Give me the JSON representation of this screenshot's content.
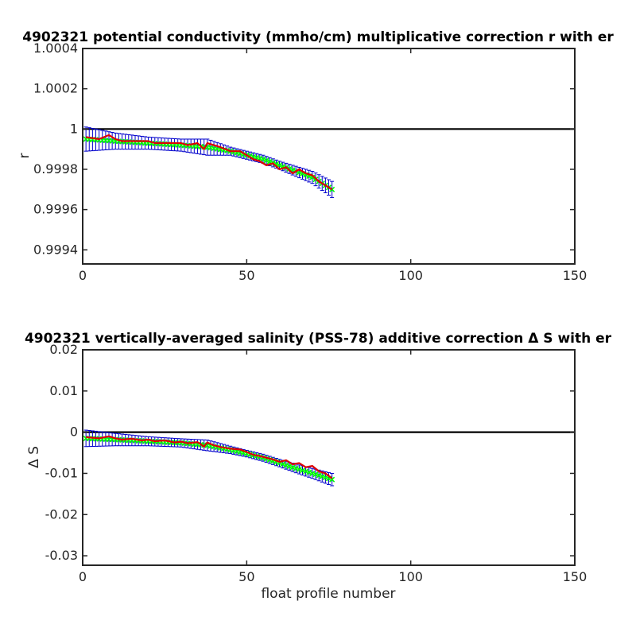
{
  "chart_data": [
    {
      "type": "line",
      "title": "4902321 potential conductivity (mmho/cm) multiplicative correction r with er",
      "xlabel": "",
      "ylabel": "r",
      "xlim": [
        0,
        150
      ],
      "ylim": [
        0.99933,
        1.0004
      ],
      "xticks": [
        0,
        50,
        100,
        150
      ],
      "xtick_labels": [
        "0",
        "50",
        "100",
        "150"
      ],
      "yticks": [
        0.9994,
        0.9996,
        0.9998,
        1.0,
        1.0002,
        1.0004
      ],
      "ytick_labels": [
        "0.9994",
        "0.9996",
        "0.9998",
        "1",
        "1.0002",
        "1.0004"
      ],
      "reference_line": 1.0,
      "colors": {
        "error_bars": "#0000cc",
        "fit": "#00ff00",
        "raw": "#dd0000",
        "reference": "#000000"
      },
      "fit_knots": {
        "x": [
          1,
          10,
          20,
          30,
          38,
          45,
          50,
          55,
          60,
          65,
          70,
          76
        ],
        "y": [
          0.99995,
          0.99994,
          0.99993,
          0.99992,
          0.99991,
          0.99989,
          0.99987,
          0.99985,
          0.99982,
          0.99979,
          0.99976,
          0.9997
        ]
      },
      "error_knots": {
        "x": [
          1,
          10,
          20,
          30,
          38,
          45,
          50,
          60,
          70,
          76
        ],
        "y": [
          6e-05,
          4e-05,
          3e-05,
          3e-05,
          4e-05,
          2e-05,
          2e-05,
          2e-05,
          3e-05,
          4e-05
        ]
      },
      "raw": {
        "x": [
          1,
          5,
          8,
          10,
          12,
          15,
          18,
          20,
          22,
          25,
          28,
          30,
          32,
          35,
          37,
          38,
          40,
          42,
          45,
          48,
          50,
          52,
          54,
          56,
          58,
          60,
          62,
          64,
          66,
          68,
          70,
          72,
          74,
          76
        ],
        "y": [
          0.99996,
          0.99995,
          0.99997,
          0.99995,
          0.99994,
          0.99994,
          0.99994,
          0.99994,
          0.99993,
          0.99993,
          0.99993,
          0.99993,
          0.99992,
          0.99993,
          0.9999,
          0.99993,
          0.99992,
          0.99991,
          0.99989,
          0.99989,
          0.99987,
          0.99985,
          0.99984,
          0.99982,
          0.99983,
          0.9998,
          0.99981,
          0.99978,
          0.9998,
          0.99978,
          0.99977,
          0.99974,
          0.99972,
          0.9997
        ]
      }
    },
    {
      "type": "line",
      "title": "4902321 vertically-averaged salinity (PSS-78) additive correction Δ S with er",
      "xlabel": "float profile number",
      "ylabel": "Δ S",
      "xlim": [
        0,
        150
      ],
      "ylim": [
        -0.0323,
        0.02
      ],
      "xticks": [
        0,
        50,
        100,
        150
      ],
      "xtick_labels": [
        "0",
        "50",
        "100",
        "150"
      ],
      "yticks": [
        -0.03,
        -0.02,
        -0.01,
        0,
        0.01,
        0.02
      ],
      "ytick_labels": [
        "-0.03",
        "-0.02",
        "-0.01",
        "0",
        "0.01",
        "0.02"
      ],
      "reference_line": 0,
      "colors": {
        "error_bars": "#0000cc",
        "fit": "#00ff00",
        "raw": "#dd0000",
        "reference": "#000000"
      },
      "fit_knots": {
        "x": [
          1,
          10,
          20,
          30,
          38,
          45,
          50,
          55,
          60,
          65,
          70,
          76
        ],
        "y": [
          -0.0015,
          -0.0018,
          -0.0022,
          -0.0026,
          -0.0032,
          -0.0043,
          -0.0052,
          -0.0062,
          -0.0075,
          -0.0088,
          -0.01,
          -0.0115
        ]
      },
      "error_knots": {
        "x": [
          1,
          10,
          20,
          30,
          38,
          45,
          50,
          60,
          70,
          76
        ],
        "y": [
          0.002,
          0.0015,
          0.0011,
          0.001,
          0.0013,
          0.0009,
          0.0008,
          0.0009,
          0.0012,
          0.0015
        ]
      },
      "raw": {
        "x": [
          1,
          5,
          8,
          10,
          12,
          15,
          18,
          20,
          22,
          25,
          28,
          30,
          32,
          35,
          37,
          38,
          40,
          42,
          45,
          48,
          50,
          52,
          54,
          56,
          58,
          60,
          62,
          64,
          66,
          68,
          70,
          72,
          74,
          76
        ],
        "y": [
          -0.0012,
          -0.0015,
          -0.001,
          -0.0015,
          -0.0018,
          -0.0016,
          -0.002,
          -0.0018,
          -0.0022,
          -0.002,
          -0.0025,
          -0.0023,
          -0.0027,
          -0.0024,
          -0.0035,
          -0.0025,
          -0.0032,
          -0.0036,
          -0.004,
          -0.0042,
          -0.0048,
          -0.0055,
          -0.0058,
          -0.0062,
          -0.0066,
          -0.0072,
          -0.0068,
          -0.0078,
          -0.0075,
          -0.0085,
          -0.0082,
          -0.0095,
          -0.01,
          -0.0112
        ]
      }
    }
  ]
}
